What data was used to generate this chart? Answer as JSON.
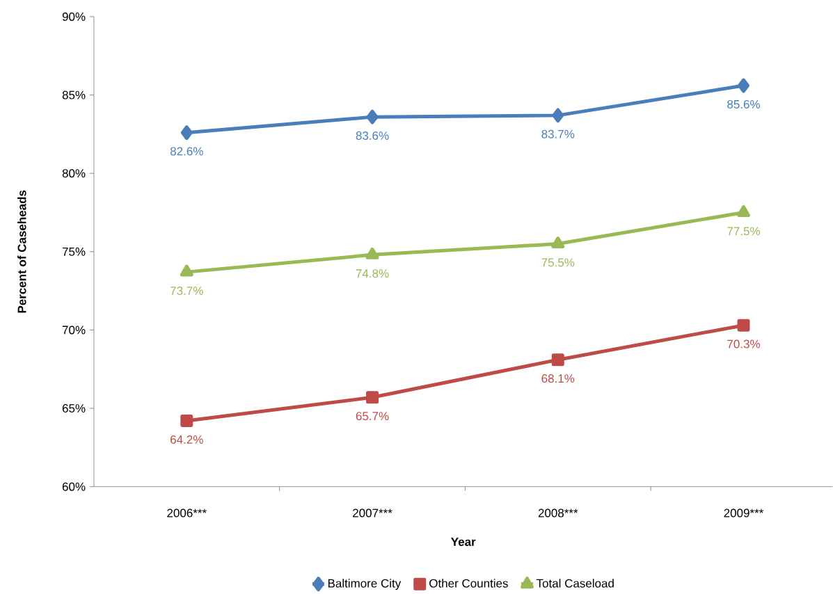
{
  "chart_data": {
    "type": "line",
    "xlabel": "Year",
    "ylabel": "Percent of Caseheads",
    "categories": [
      "2006***",
      "2007***",
      "2008***",
      "2009***"
    ],
    "series": [
      {
        "name": "Baltimore City",
        "color": "#4a7ebb",
        "marker": "diamond",
        "values": [
          82.6,
          83.6,
          83.7,
          85.6
        ],
        "value_labels": [
          "82.6%",
          "83.6%",
          "83.7%",
          "85.6%"
        ]
      },
      {
        "name": "Other Counties",
        "color": "#be4b48",
        "marker": "square",
        "values": [
          64.2,
          65.7,
          68.1,
          70.3
        ],
        "value_labels": [
          "64.2%",
          "65.7%",
          "68.1%",
          "70.3%"
        ]
      },
      {
        "name": "Total Caseload",
        "color": "#98b954",
        "marker": "triangle",
        "values": [
          73.7,
          74.8,
          75.5,
          77.5
        ],
        "value_labels": [
          "73.7%",
          "74.8%",
          "75.5%",
          "77.5%"
        ]
      }
    ],
    "ylim": [
      60,
      90
    ],
    "yticks": [
      {
        "value": 60,
        "label": "60%"
      },
      {
        "value": 65,
        "label": "65%"
      },
      {
        "value": 70,
        "label": "70%"
      },
      {
        "value": 75,
        "label": "75%"
      },
      {
        "value": 80,
        "label": "80%"
      },
      {
        "value": 85,
        "label": "85%"
      },
      {
        "value": 90,
        "label": "90%"
      }
    ],
    "grid": false,
    "legend": "bottom",
    "line_style": "solid"
  }
}
